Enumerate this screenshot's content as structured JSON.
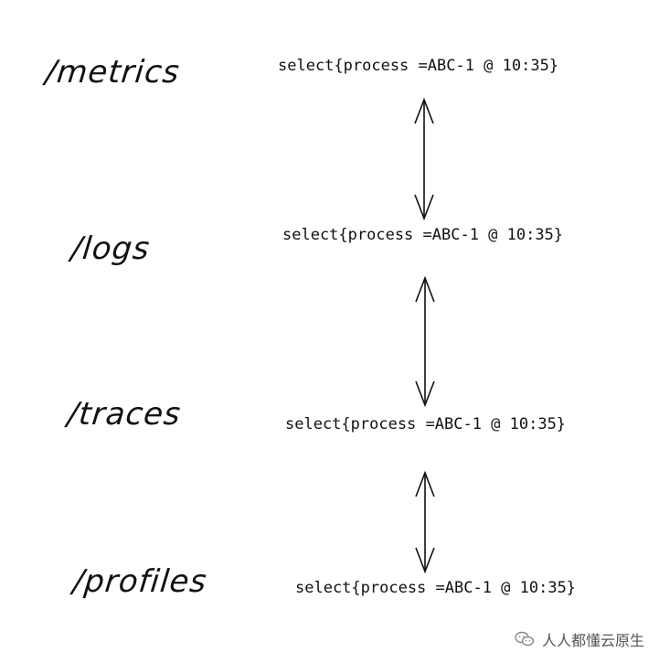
{
  "signals": [
    {
      "path": "/metrics",
      "query": "select{process =ABC-1 @ 10:35}"
    },
    {
      "path": "/logs",
      "query": "select{process =ABC-1 @ 10:35}"
    },
    {
      "path": "/traces",
      "query": "select{process =ABC-1 @ 10:35}"
    },
    {
      "path": "/profiles",
      "query": "select{process =ABC-1 @ 10:35}"
    }
  ],
  "watermark": {
    "text": "人人都懂云原生",
    "icon": "wechat-icon"
  },
  "colors": {
    "ink": "#111111",
    "watermark_text": "#555555"
  }
}
